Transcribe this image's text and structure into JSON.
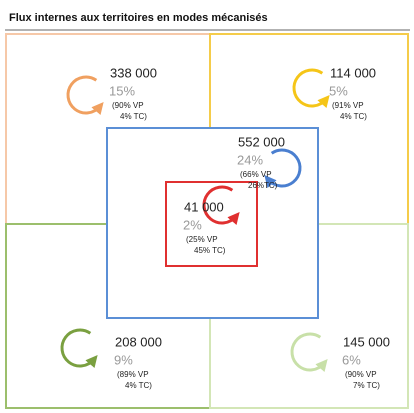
{
  "title": "Flux internes aux territoires en modes mécanisés",
  "zones": [
    {
      "value": "338 000",
      "share": "15%",
      "vp": "(90% VP",
      "tc": "4% TC)"
    },
    {
      "value": "114 000",
      "share": "5%",
      "vp": "(91% VP",
      "tc": "4% TC)"
    },
    {
      "value": "552 000",
      "share": "24%",
      "vp": "(66% VP",
      "tc": "26%TC)"
    },
    {
      "value": "41 000",
      "share": "2%",
      "vp": "(25% VP",
      "tc": "45% TC)"
    },
    {
      "value": "208 000",
      "share": "9%",
      "vp": "(89% VP",
      "tc": "4% TC)"
    },
    {
      "value": "145 000",
      "share": "6%",
      "vp": "(90% VP",
      "tc": "7% TC)"
    }
  ]
}
